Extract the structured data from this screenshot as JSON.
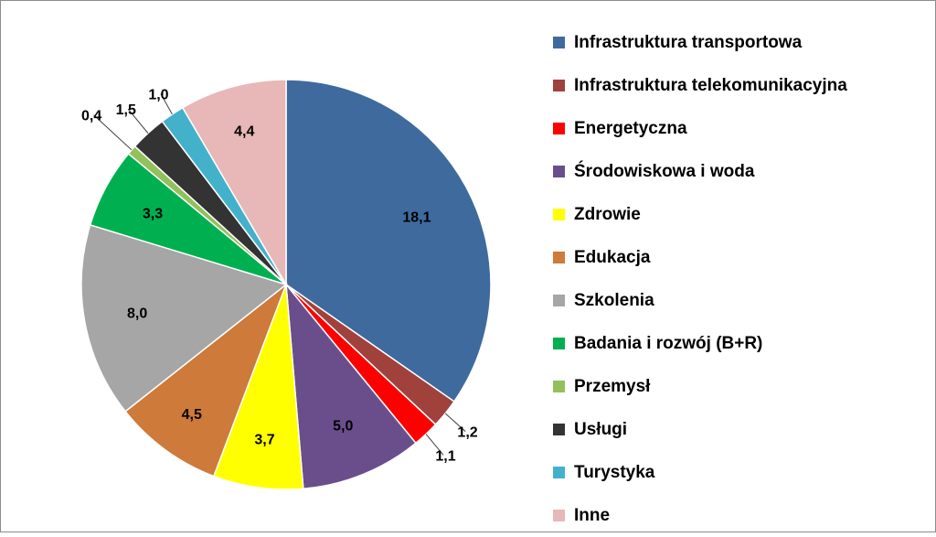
{
  "chart_data": {
    "type": "pie",
    "categories": [
      "Infrastruktura transportowa",
      "Infrastruktura telekomunikacyjna",
      "Energetyczna",
      "Środowiskowa i woda",
      "Zdrowie",
      "Edukacja",
      "Szkolenia",
      "Badania i rozwój (B+R)",
      "Przemysł",
      "Usługi",
      "Turystyka",
      "Inne"
    ],
    "values": [
      18.1,
      1.2,
      1.1,
      5.0,
      3.7,
      4.5,
      8.0,
      3.3,
      0.4,
      1.5,
      1.0,
      4.4
    ],
    "data_labels": [
      "18,1",
      "1,2",
      "1,1",
      "5,0",
      "3,7",
      "4,5",
      "8,0",
      "3,3",
      "0,4",
      "1,5",
      "1,0",
      "4,4"
    ],
    "colors": [
      "#3F6A9E",
      "#A0413C",
      "#FF0000",
      "#6A4E8C",
      "#FFFF00",
      "#CD7A3A",
      "#A6A6A6",
      "#00B050",
      "#92C05A",
      "#333333",
      "#44B1CB",
      "#E8B7B7"
    ],
    "legend_position": "right"
  }
}
